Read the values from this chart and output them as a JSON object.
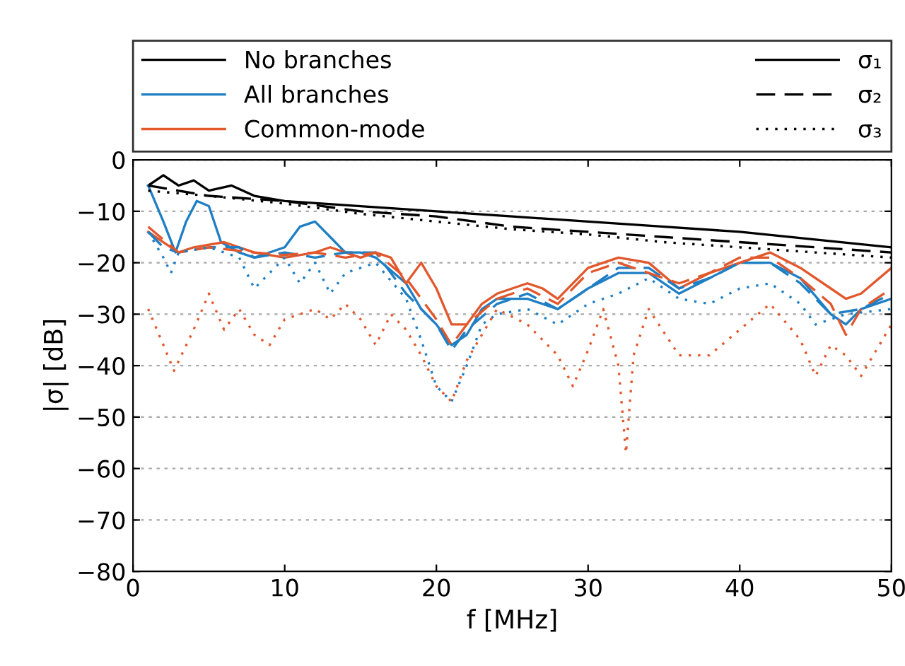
{
  "chart_data": {
    "type": "line",
    "xlabel": "f [MHz]",
    "ylabel": "|σ| [dB]",
    "xlim": [
      0,
      50
    ],
    "xticks": [
      0,
      10,
      20,
      30,
      40,
      50
    ],
    "ylim": [
      -80,
      0
    ],
    "yticks": [
      {
        "value": -80,
        "label": "−80"
      },
      {
        "value": -70,
        "label": "−70"
      },
      {
        "value": -60,
        "label": "−60"
      },
      {
        "value": -50,
        "label": "−50"
      },
      {
        "value": -40,
        "label": "−40"
      },
      {
        "value": -30,
        "label": "−30"
      },
      {
        "value": -20,
        "label": "−20"
      },
      {
        "value": -10,
        "label": "−10"
      },
      0
    ],
    "grid": "y",
    "legend": "top",
    "marker": "none",
    "annotations": [
      "σ₁",
      "σ₂",
      "σ₃"
    ],
    "series": [
      {
        "name": "No branches",
        "color": "#000000",
        "line_style": "solid",
        "x": [
          1,
          2,
          3,
          4,
          5,
          6.5,
          8,
          10,
          15,
          20,
          25,
          30,
          35,
          40,
          45,
          50
        ],
        "values": [
          -5,
          -3,
          -5,
          -4,
          -6,
          -5,
          -7,
          -8,
          -9,
          -10,
          -11,
          -12,
          -13,
          -14,
          -15.5,
          -17
        ]
      },
      {
        "name": "All branches",
        "color": "#1f7fc4",
        "line_style": "solid",
        "x": [
          1,
          2,
          2.8,
          3.5,
          4.2,
          5,
          5.8,
          7,
          8,
          10,
          11,
          12,
          13,
          14,
          15,
          16,
          18,
          19,
          20,
          21,
          22,
          23,
          24,
          26,
          28,
          30,
          32,
          34,
          36,
          38,
          40,
          42,
          44,
          46,
          47,
          48,
          50
        ],
        "values": [
          -5,
          -12,
          -18,
          -12,
          -8,
          -9,
          -16,
          -18,
          -19,
          -17,
          -13,
          -12,
          -15,
          -18,
          -18,
          -19,
          -24,
          -29,
          -32,
          -36,
          -34,
          -29,
          -27,
          -27,
          -29,
          -25,
          -22,
          -22,
          -26,
          -23,
          -20,
          -20,
          -23,
          -30,
          -32,
          -29,
          -27
        ]
      },
      {
        "name": "Common-mode",
        "color": "#e2572b",
        "line_style": "solid",
        "x": [
          1,
          2,
          3,
          4,
          6,
          8,
          10,
          12,
          13,
          15,
          16,
          17,
          18,
          19,
          20,
          21,
          22,
          23,
          24,
          26,
          27,
          28,
          30,
          32,
          34,
          36,
          38,
          40,
          42,
          44,
          46,
          47,
          48,
          50
        ],
        "values": [
          -14,
          -16,
          -18,
          -17,
          -16,
          -18,
          -19,
          -18,
          -17,
          -19,
          -18,
          -19,
          -24,
          -20,
          -25,
          -32,
          -32,
          -28,
          -26,
          -24,
          -25,
          -27,
          -21,
          -19,
          -20,
          -25,
          -22,
          -20,
          -18,
          -21,
          -25,
          -27,
          -26,
          -21
        ]
      },
      {
        "color": "#000000",
        "line_style": "dashed",
        "x": [
          1,
          5,
          10,
          15,
          20,
          25,
          30,
          35,
          40,
          45,
          50
        ],
        "values": [
          -5,
          -7,
          -8,
          -10,
          -11,
          -13,
          -14,
          -15,
          -16,
          -17,
          -18
        ]
      },
      {
        "color": "#1f7fc4",
        "line_style": "dashed",
        "x": [
          1,
          2,
          3,
          5,
          7,
          8,
          10,
          12,
          14,
          16,
          18,
          20,
          21,
          22,
          24,
          26,
          28,
          30,
          32,
          34,
          36,
          38,
          40,
          42,
          44,
          46,
          48,
          50
        ],
        "values": [
          -14,
          -17,
          -18,
          -17,
          -17,
          -19,
          -18,
          -19,
          -18,
          -18,
          -26,
          -32,
          -37,
          -33,
          -28,
          -26,
          -29,
          -25,
          -21,
          -21,
          -25,
          -23,
          -20,
          -20,
          -24,
          -30,
          -29,
          -26
        ]
      },
      {
        "color": "#e2572b",
        "line_style": "dashed",
        "x": [
          1,
          3,
          5,
          8,
          10,
          12,
          14,
          16,
          18,
          20,
          21,
          22,
          24,
          26,
          28,
          30,
          32,
          34,
          36,
          38,
          40,
          42,
          44,
          46,
          47,
          48,
          50
        ],
        "values": [
          -13,
          -18,
          -17,
          -18,
          -18.5,
          -18,
          -19,
          -18,
          -23,
          -31,
          -36,
          -32,
          -27,
          -25,
          -28,
          -22,
          -20,
          -22,
          -24,
          -22,
          -19,
          -19,
          -23,
          -28,
          -34,
          -29,
          -25
        ]
      },
      {
        "color": "#000000",
        "line_style": "dotted",
        "x": [
          1,
          5,
          10,
          15,
          20,
          25,
          30,
          35,
          40,
          45,
          50
        ],
        "values": [
          -6,
          -7,
          -8.5,
          -10.5,
          -12,
          -13.5,
          -14.5,
          -16,
          -17,
          -18,
          -19
        ]
      },
      {
        "color": "#1f7fc4",
        "line_style": "dotted",
        "x": [
          1,
          2,
          2.5,
          3,
          5,
          7,
          8,
          10,
          11,
          12,
          13,
          14,
          16,
          18,
          19,
          20,
          21,
          22,
          23,
          24,
          26,
          28,
          30,
          32,
          34,
          36,
          38,
          40,
          42,
          44,
          45,
          47,
          50
        ],
        "values": [
          -14,
          -19,
          -22,
          -18,
          -17,
          -19,
          -25,
          -19,
          -24,
          -20,
          -26,
          -22,
          -20,
          -27,
          -35,
          -44,
          -47,
          -40,
          -32,
          -30,
          -29,
          -32,
          -28,
          -26,
          -23,
          -27,
          -28,
          -25,
          -24,
          -28,
          -32,
          -30,
          -29
        ]
      },
      {
        "color": "#e2572b",
        "line_style": "dotted",
        "x": [
          1,
          2,
          2.7,
          4,
          5,
          6,
          7,
          8,
          9,
          10,
          12,
          13,
          14,
          15,
          16,
          17,
          18,
          19,
          20,
          21,
          22,
          24,
          26,
          28,
          29,
          30,
          31,
          32,
          32.5,
          33,
          34,
          36,
          38,
          40,
          42,
          44,
          45,
          46,
          47,
          48,
          50
        ],
        "values": [
          -29,
          -36,
          -41,
          -33,
          -26,
          -33,
          -29,
          -34,
          -36,
          -31,
          -29,
          -31,
          -28,
          -31,
          -36,
          -30,
          -33,
          -38,
          -44,
          -47,
          -39,
          -29,
          -32,
          -38,
          -44,
          -37,
          -29,
          -40,
          -57,
          -38,
          -29,
          -38,
          -38,
          -33,
          -28,
          -35,
          -42,
          -36,
          -38,
          -42,
          -32
        ]
      }
    ]
  }
}
